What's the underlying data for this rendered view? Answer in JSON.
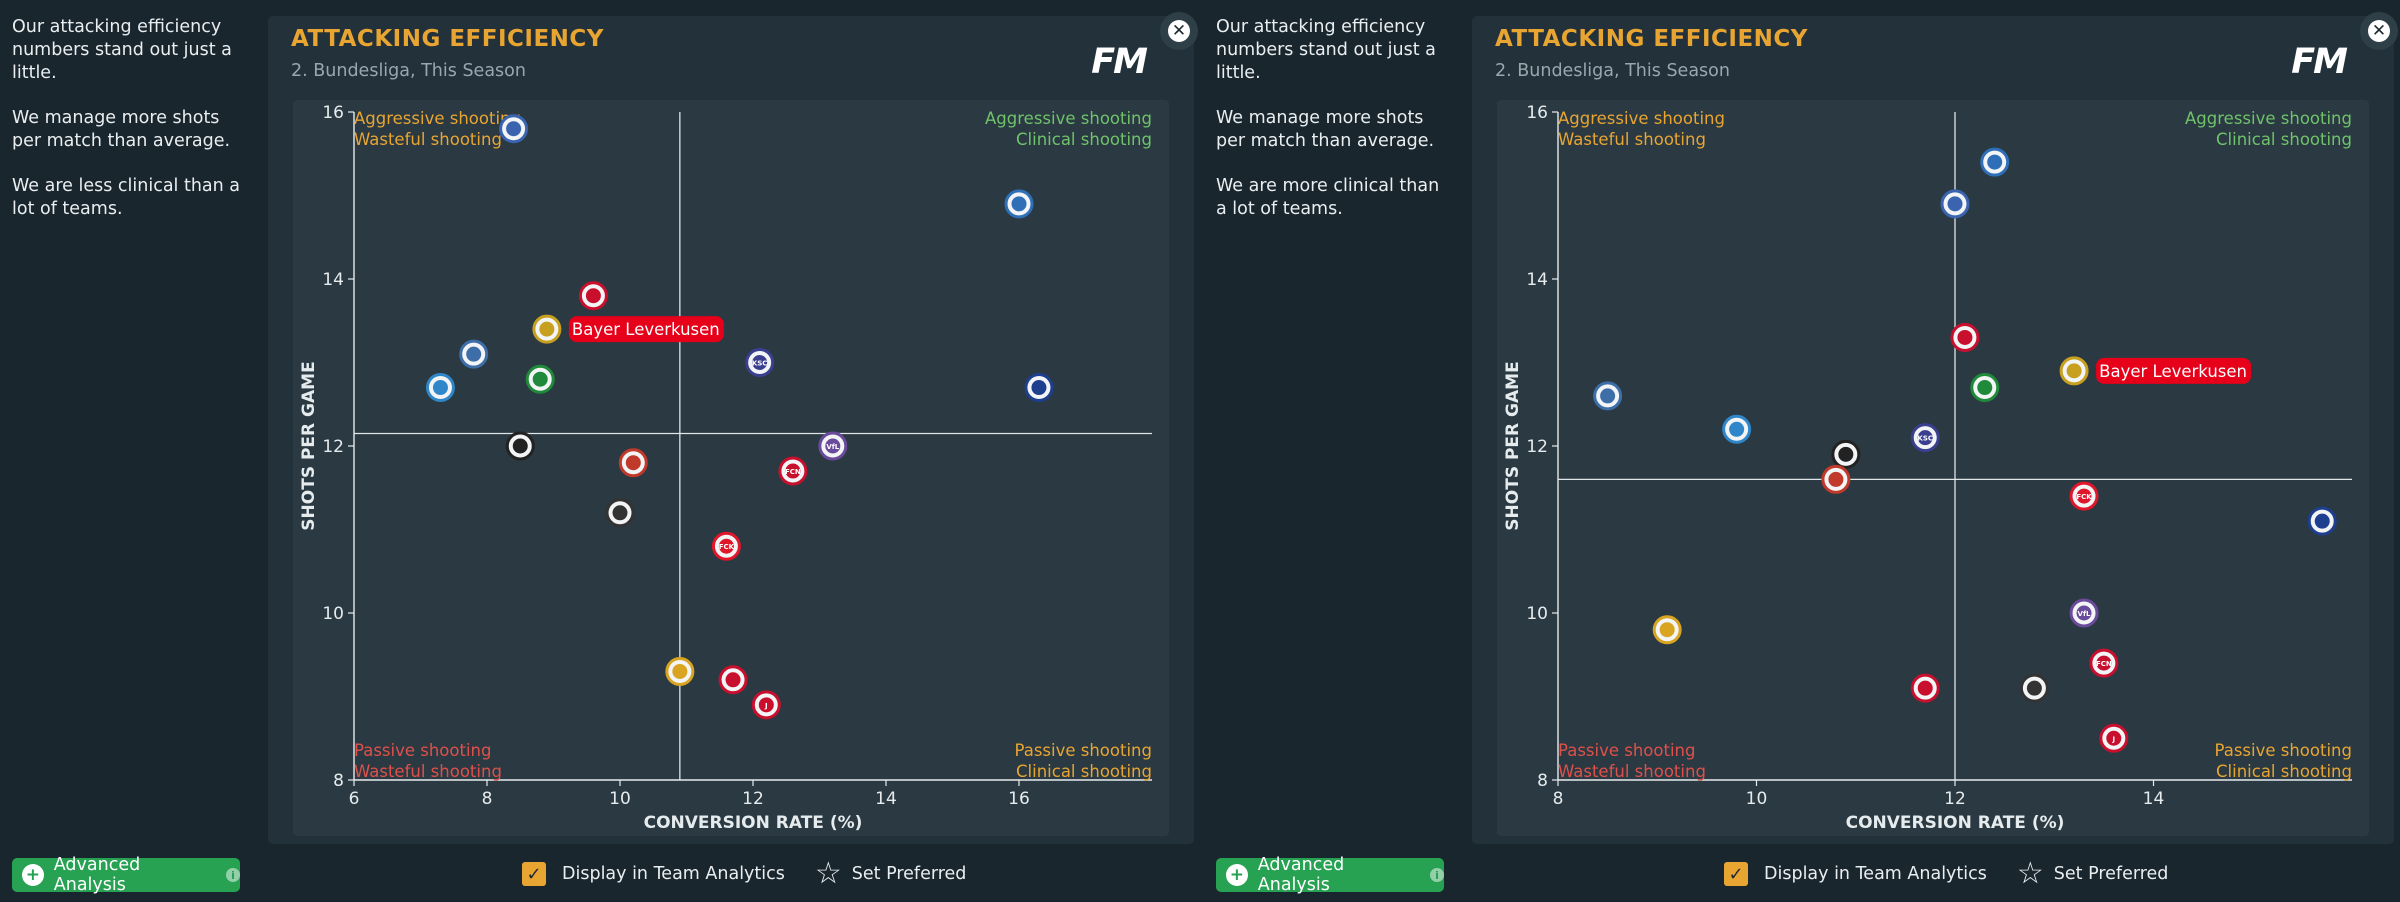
{
  "colors": {
    "accent": "#e9a531",
    "aggressive_wasteful": "#e9a531",
    "aggressive_clinical": "#6fc36a",
    "passive_wasteful": "#e0504a",
    "passive_clinical": "#e9a531",
    "highlight": "#e6001a",
    "advanced_button": "#27a152"
  },
  "panels": [
    {
      "notes": [
        "Our attacking efficiency numbers stand out just a little.",
        "We manage more shots per match than average.",
        "We are less clinical than a lot of teams."
      ],
      "title": "ATTACKING EFFICIENCY",
      "subtitle": "2. Bundesliga, This Season",
      "logo": "FM",
      "close_icon": "✕",
      "quadrants": {
        "top_left": [
          "Aggressive shooting",
          "Wasteful shooting"
        ],
        "top_right": [
          "Aggressive shooting",
          "Clinical shooting"
        ],
        "bottom_left": [
          "Passive shooting",
          "Wasteful shooting"
        ],
        "bottom_right": [
          "Passive shooting",
          "Clinical shooting"
        ]
      },
      "advanced_label": "Advanced Analysis",
      "display_label": "Display in Team Analytics",
      "preferred_label": "Set Preferred"
    },
    {
      "notes": [
        "Our attacking efficiency numbers stand out just a little.",
        "We manage more shots per match than average.",
        "We are more clinical than a lot of teams."
      ],
      "title": "ATTACKING EFFICIENCY",
      "subtitle": "2. Bundesliga, This Season",
      "logo": "FM",
      "close_icon": "✕",
      "quadrants": {
        "top_left": [
          "Aggressive shooting",
          "Wasteful shooting"
        ],
        "top_right": [
          "Aggressive shooting",
          "Clinical shooting"
        ],
        "bottom_left": [
          "Passive shooting",
          "Wasteful shooting"
        ],
        "bottom_right": [
          "Passive shooting",
          "Clinical shooting"
        ]
      },
      "advanced_label": "Advanced Analysis",
      "display_label": "Display in Team Analytics",
      "preferred_label": "Set Preferred"
    }
  ],
  "chart_data": [
    {
      "type": "scatter",
      "xlabel": "CONVERSION RATE (%)",
      "ylabel": "SHOTS PER GAME",
      "xlim": [
        6,
        18
      ],
      "ylim": [
        8,
        16
      ],
      "xticks": [
        6,
        8,
        10,
        12,
        14,
        16
      ],
      "yticks": [
        8,
        10,
        12,
        14,
        16
      ],
      "average": {
        "x": 10.9,
        "y": 12.15
      },
      "highlight_label": "Bayer Leverkusen",
      "points": [
        {
          "x": 8.4,
          "y": 15.8,
          "badge": "#3a64b0",
          "glyph": ""
        },
        {
          "x": 16.0,
          "y": 14.9,
          "badge": "#2f6fb8",
          "glyph": ""
        },
        {
          "x": 9.6,
          "y": 13.8,
          "badge": "#c8102e",
          "glyph": ""
        },
        {
          "x": 8.9,
          "y": 13.4,
          "badge": "#c8a020",
          "glyph": "",
          "highlight": true
        },
        {
          "x": 7.8,
          "y": 13.1,
          "badge": "#3d6ea8",
          "glyph": ""
        },
        {
          "x": 12.1,
          "y": 13.0,
          "badge": "#3a3f8f",
          "glyph": "KSC"
        },
        {
          "x": 8.8,
          "y": 12.8,
          "badge": "#1f8a3a",
          "glyph": ""
        },
        {
          "x": 7.3,
          "y": 12.7,
          "badge": "#2f86c9",
          "glyph": ""
        },
        {
          "x": 16.3,
          "y": 12.7,
          "badge": "#1e3f8f",
          "glyph": ""
        },
        {
          "x": 8.5,
          "y": 12.0,
          "badge": "#222222",
          "glyph": ""
        },
        {
          "x": 13.2,
          "y": 12.0,
          "badge": "#6a4a9a",
          "glyph": "VfL"
        },
        {
          "x": 10.2,
          "y": 11.8,
          "badge": "#c0392b",
          "glyph": ""
        },
        {
          "x": 12.6,
          "y": 11.7,
          "badge": "#c8102e",
          "glyph": "FCN"
        },
        {
          "x": 10.0,
          "y": 11.2,
          "badge": "#333333",
          "glyph": ""
        },
        {
          "x": 11.6,
          "y": 10.8,
          "badge": "#e0162b",
          "glyph": "FCK"
        },
        {
          "x": 10.9,
          "y": 9.3,
          "badge": "#d9a520",
          "glyph": ""
        },
        {
          "x": 11.7,
          "y": 9.2,
          "badge": "#c8102e",
          "glyph": ""
        },
        {
          "x": 12.2,
          "y": 8.9,
          "badge": "#c8102e",
          "glyph": "J"
        }
      ]
    },
    {
      "type": "scatter",
      "xlabel": "CONVERSION RATE (%)",
      "ylabel": "SHOTS PER GAME",
      "xlim": [
        8,
        16
      ],
      "ylim": [
        8,
        16
      ],
      "xticks": [
        8,
        10,
        12,
        14
      ],
      "yticks": [
        8,
        10,
        12,
        14,
        16
      ],
      "average": {
        "x": 12.0,
        "y": 11.6
      },
      "highlight_label": "Bayer Leverkusen",
      "points": [
        {
          "x": 12.4,
          "y": 15.4,
          "badge": "#2f6fb8",
          "glyph": ""
        },
        {
          "x": 12.0,
          "y": 14.9,
          "badge": "#3a64b0",
          "glyph": ""
        },
        {
          "x": 12.1,
          "y": 13.3,
          "badge": "#c8102e",
          "glyph": ""
        },
        {
          "x": 13.2,
          "y": 12.9,
          "badge": "#c8a020",
          "glyph": "",
          "highlight": true
        },
        {
          "x": 12.3,
          "y": 12.7,
          "badge": "#1f8a3a",
          "glyph": ""
        },
        {
          "x": 8.5,
          "y": 12.6,
          "badge": "#3d6ea8",
          "glyph": ""
        },
        {
          "x": 9.8,
          "y": 12.2,
          "badge": "#2f86c9",
          "glyph": ""
        },
        {
          "x": 11.7,
          "y": 12.1,
          "badge": "#3a3f8f",
          "glyph": "KSC"
        },
        {
          "x": 10.9,
          "y": 11.9,
          "badge": "#222222",
          "glyph": ""
        },
        {
          "x": 10.8,
          "y": 11.6,
          "badge": "#c0392b",
          "glyph": ""
        },
        {
          "x": 13.3,
          "y": 11.4,
          "badge": "#e0162b",
          "glyph": "FCK"
        },
        {
          "x": 15.7,
          "y": 11.1,
          "badge": "#1e3f8f",
          "glyph": ""
        },
        {
          "x": 13.3,
          "y": 10.0,
          "badge": "#6a4a9a",
          "glyph": "VfL"
        },
        {
          "x": 9.1,
          "y": 9.8,
          "badge": "#d9a520",
          "glyph": ""
        },
        {
          "x": 13.5,
          "y": 9.4,
          "badge": "#c8102e",
          "glyph": "FCN"
        },
        {
          "x": 11.7,
          "y": 9.1,
          "badge": "#c8102e",
          "glyph": ""
        },
        {
          "x": 12.8,
          "y": 9.1,
          "badge": "#333333",
          "glyph": ""
        },
        {
          "x": 13.6,
          "y": 8.5,
          "badge": "#c8102e",
          "glyph": "J"
        }
      ]
    }
  ]
}
